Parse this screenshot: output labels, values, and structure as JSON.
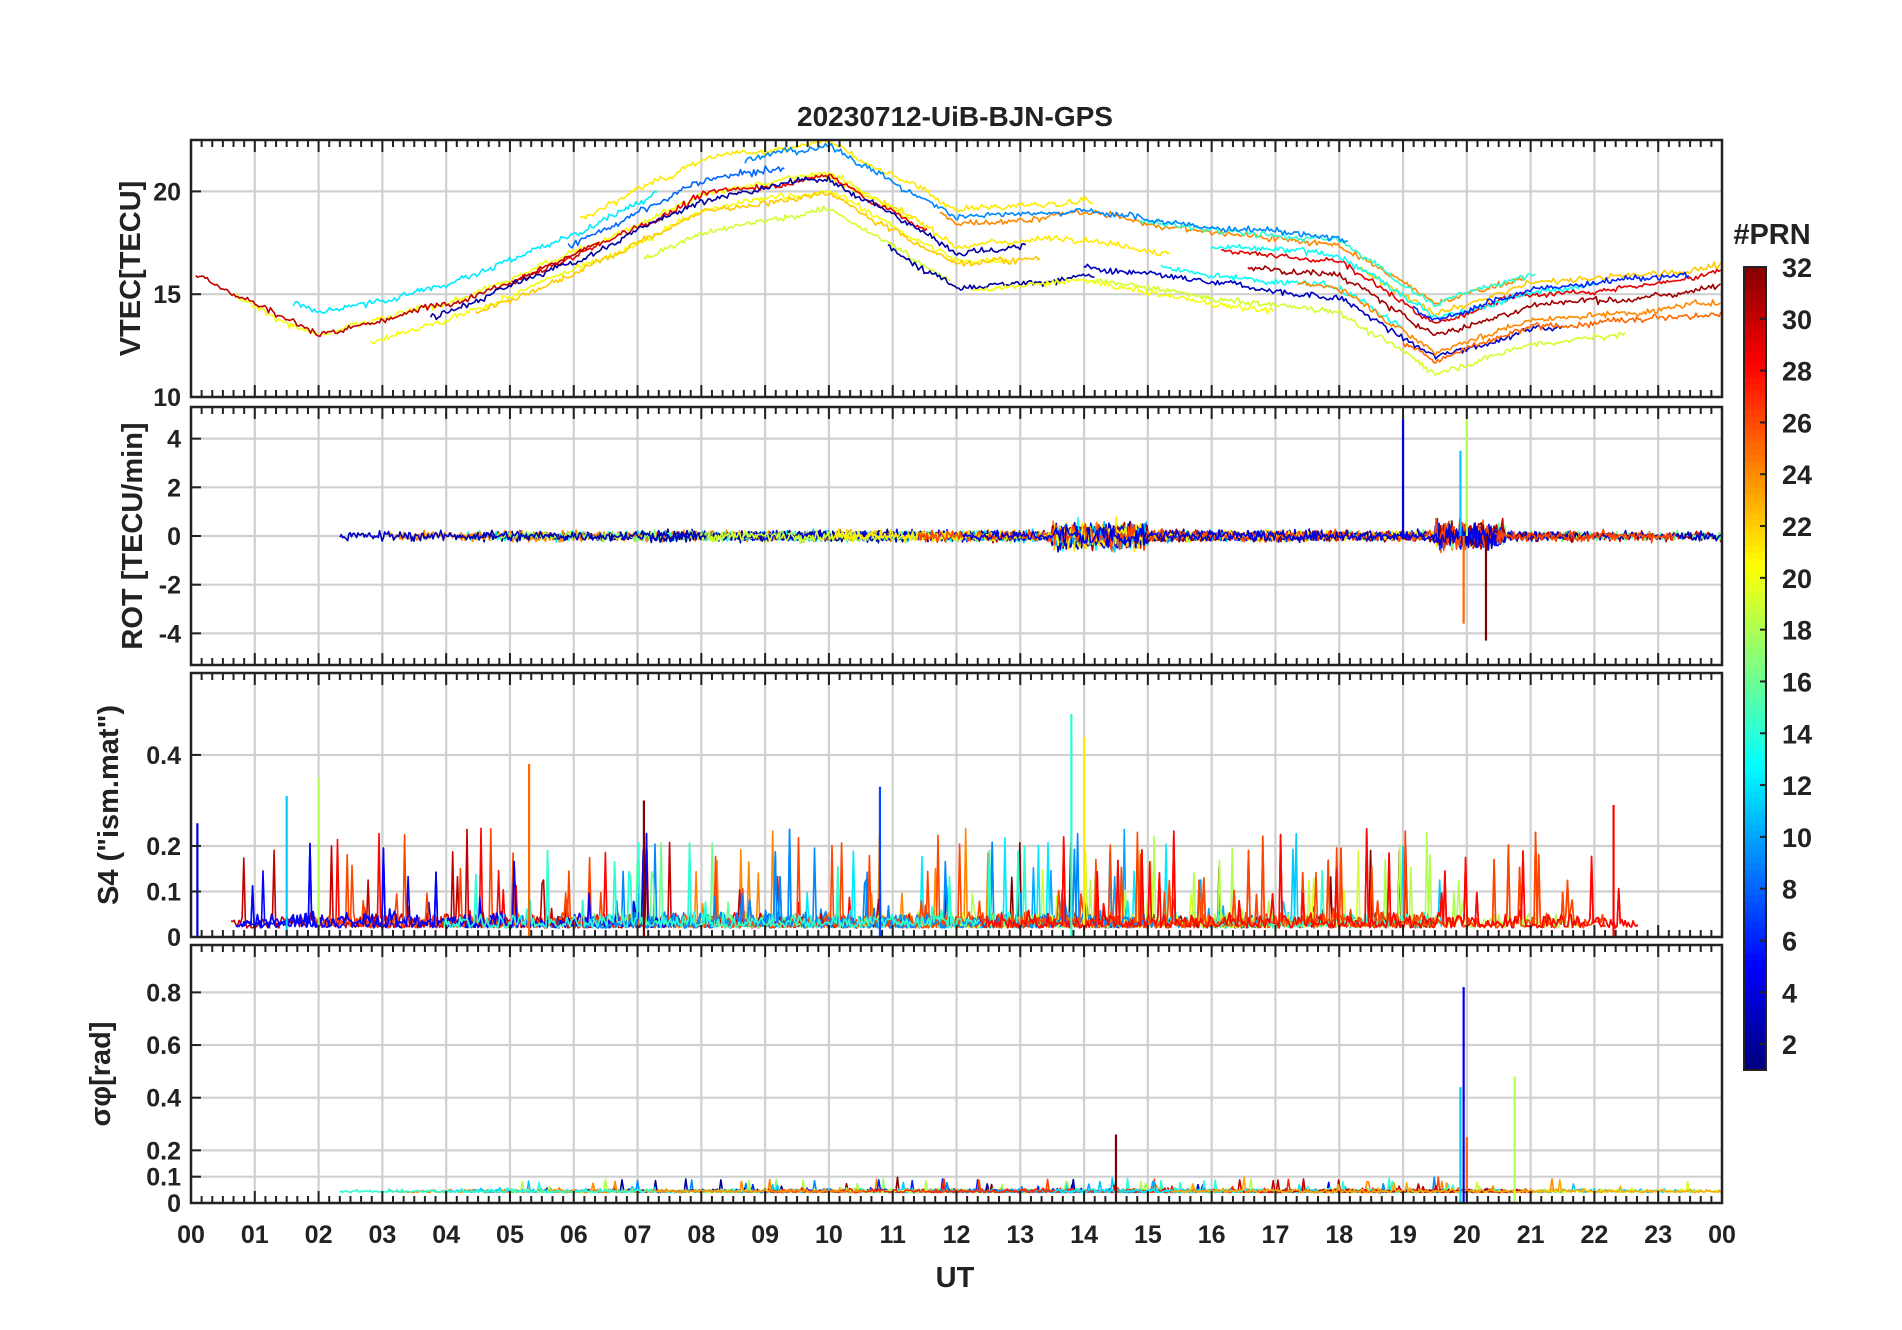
{
  "chart_data": [
    {
      "type": "line",
      "title": "20230712-UiB-BJN-GPS",
      "ylabel": "VTEC[TECU]",
      "ylim": [
        10,
        22.5
      ],
      "yticks": [
        10,
        15,
        20
      ],
      "note": "multi-series ionospheric TEC, one line per GPS PRN (1-32), colour = PRN",
      "series_summary": [
        {
          "x": 0,
          "y": 15.5
        },
        {
          "x": 2,
          "y": 12.5
        },
        {
          "x": 4,
          "y": 14
        },
        {
          "x": 6,
          "y": 16.5
        },
        {
          "x": 8,
          "y": 19.5
        },
        {
          "x": 10,
          "y": 20.5
        },
        {
          "x": 12,
          "y": 17
        },
        {
          "x": 14,
          "y": 17.5
        },
        {
          "x": 16,
          "y": 16.5
        },
        {
          "x": 18,
          "y": 16
        },
        {
          "x": 19.5,
          "y": 13
        },
        {
          "x": 21,
          "y": 14.5
        },
        {
          "x": 23,
          "y": 15
        },
        {
          "x": 24,
          "y": 15.5
        }
      ]
    },
    {
      "type": "line",
      "ylabel": "ROT [TECU/min]",
      "ylim": [
        -5.3,
        5.3
      ],
      "yticks": [
        -4,
        -2,
        0,
        2,
        4
      ],
      "spikes": [
        {
          "x": 19.0,
          "y": 4.8
        },
        {
          "x": 19.9,
          "y": 3.5
        },
        {
          "x": 20.0,
          "y": 4.9
        },
        {
          "x": 19.95,
          "y": -3.6
        },
        {
          "x": 20.3,
          "y": -4.3
        }
      ]
    },
    {
      "type": "line",
      "ylabel": "S4 (\"ism.mat\")",
      "ylim": [
        0,
        0.58
      ],
      "yticks": [
        0,
        0.1,
        0.2,
        0.4
      ],
      "peaks": [
        {
          "x": 0.1,
          "y": 0.25
        },
        {
          "x": 1.5,
          "y": 0.31
        },
        {
          "x": 2.0,
          "y": 0.35
        },
        {
          "x": 5.3,
          "y": 0.38
        },
        {
          "x": 7.1,
          "y": 0.3
        },
        {
          "x": 10.8,
          "y": 0.33
        },
        {
          "x": 13.8,
          "y": 0.49
        },
        {
          "x": 14.0,
          "y": 0.44
        },
        {
          "x": 22.3,
          "y": 0.29
        }
      ]
    },
    {
      "type": "line",
      "ylabel": "σφ[rad]",
      "ylim": [
        0,
        0.98
      ],
      "yticks": [
        0,
        0.1,
        0.2,
        0.4,
        0.6,
        0.8
      ],
      "peaks": [
        {
          "x": 19.95,
          "y": 0.82
        },
        {
          "x": 19.9,
          "y": 0.44
        },
        {
          "x": 20.75,
          "y": 0.48
        },
        {
          "x": 20.0,
          "y": 0.25
        },
        {
          "x": 14.5,
          "y": 0.26
        }
      ]
    }
  ],
  "xaxis": {
    "label": "UT",
    "ticks": [
      "00",
      "01",
      "02",
      "03",
      "04",
      "05",
      "06",
      "07",
      "08",
      "09",
      "10",
      "11",
      "12",
      "13",
      "14",
      "15",
      "16",
      "17",
      "18",
      "19",
      "20",
      "21",
      "22",
      "23",
      "00"
    ],
    "range": [
      0,
      24
    ]
  },
  "colorbar": {
    "title": "#PRN",
    "ticks": [
      2,
      4,
      6,
      8,
      10,
      12,
      14,
      16,
      18,
      20,
      22,
      24,
      26,
      28,
      30,
      32
    ],
    "range": [
      1,
      32
    ],
    "colormap": "jet"
  }
}
